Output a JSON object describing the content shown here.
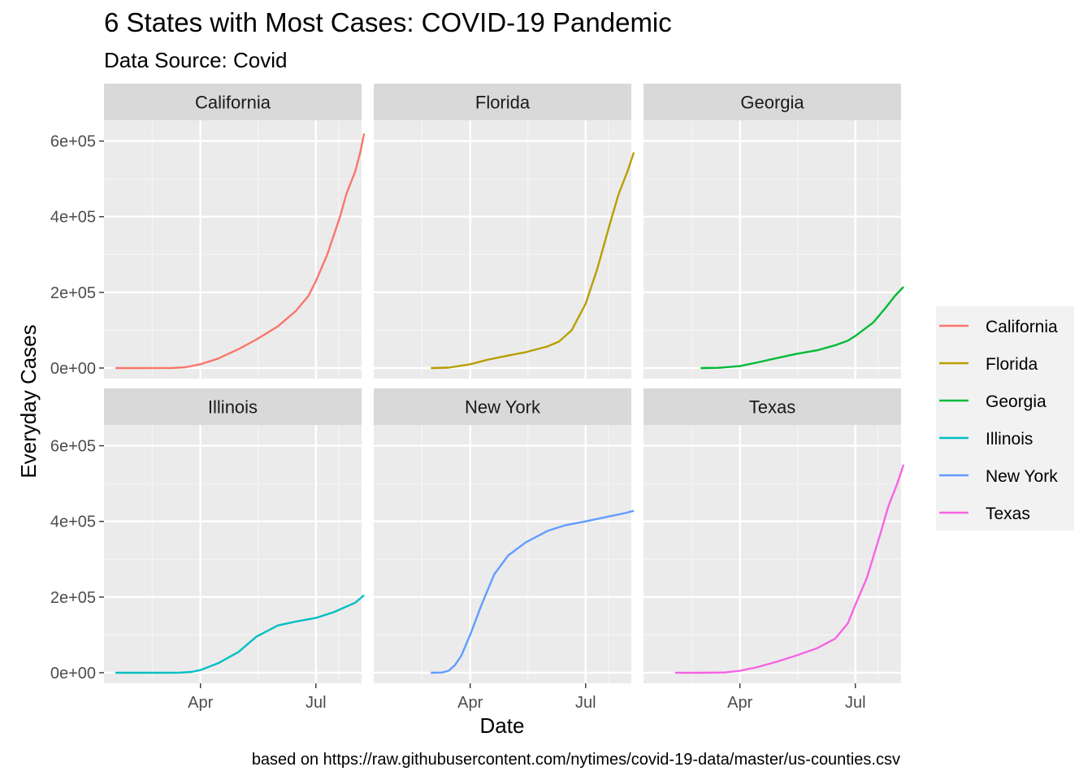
{
  "title": "6 States with Most Cases: COVID-19 Pandemic",
  "subtitle": "Data Source: Covid",
  "caption": "based on https://raw.githubusercontent.com/nytimes/covid-19-data/master/us-counties.csv",
  "chart_data": {
    "type": "line",
    "facet_layout": "2 rows x 3 columns, shared axes",
    "xlabel": "Date",
    "ylabel": "Everyday Cases",
    "x_ticks": [
      "Apr",
      "Jul"
    ],
    "x_tick_values": [
      "2020-04-01",
      "2020-07-01"
    ],
    "xlim": [
      "2020-01-16",
      "2020-08-06"
    ],
    "y_ticks": [
      "0e+00",
      "2e+05",
      "4e+05",
      "6e+05"
    ],
    "y_tick_values": [
      0,
      200000,
      400000,
      600000
    ],
    "ylim": [
      -28000,
      655000
    ],
    "grid": true,
    "legend_position": "right",
    "series": [
      {
        "name": "California",
        "color": "#F8766D",
        "points": [
          [
            "2020-01-25",
            0
          ],
          [
            "2020-02-15",
            0
          ],
          [
            "2020-03-10",
            200
          ],
          [
            "2020-03-20",
            2000
          ],
          [
            "2020-04-01",
            10000
          ],
          [
            "2020-04-15",
            25000
          ],
          [
            "2020-05-01",
            50000
          ],
          [
            "2020-05-15",
            75000
          ],
          [
            "2020-06-01",
            110000
          ],
          [
            "2020-06-15",
            150000
          ],
          [
            "2020-06-25",
            190000
          ],
          [
            "2020-07-01",
            230000
          ],
          [
            "2020-07-10",
            300000
          ],
          [
            "2020-07-20",
            400000
          ],
          [
            "2020-07-25",
            460000
          ],
          [
            "2020-08-01",
            520000
          ],
          [
            "2020-08-05",
            570000
          ],
          [
            "2020-08-08",
            620000
          ]
        ]
      },
      {
        "name": "Florida",
        "color": "#B79F00",
        "points": [
          [
            "2020-03-01",
            0
          ],
          [
            "2020-03-15",
            1000
          ],
          [
            "2020-04-01",
            10000
          ],
          [
            "2020-04-15",
            22000
          ],
          [
            "2020-05-01",
            33000
          ],
          [
            "2020-05-15",
            42000
          ],
          [
            "2020-06-01",
            57000
          ],
          [
            "2020-06-10",
            70000
          ],
          [
            "2020-06-20",
            100000
          ],
          [
            "2020-07-01",
            170000
          ],
          [
            "2020-07-10",
            260000
          ],
          [
            "2020-07-20",
            380000
          ],
          [
            "2020-07-27",
            460000
          ],
          [
            "2020-08-03",
            520000
          ],
          [
            "2020-08-08",
            570000
          ]
        ]
      },
      {
        "name": "Georgia",
        "color": "#00BA38",
        "points": [
          [
            "2020-03-01",
            0
          ],
          [
            "2020-03-15",
            500
          ],
          [
            "2020-04-01",
            5000
          ],
          [
            "2020-04-15",
            15000
          ],
          [
            "2020-05-01",
            27000
          ],
          [
            "2020-05-15",
            37000
          ],
          [
            "2020-06-01",
            47000
          ],
          [
            "2020-06-15",
            60000
          ],
          [
            "2020-06-25",
            72000
          ],
          [
            "2020-07-01",
            85000
          ],
          [
            "2020-07-15",
            120000
          ],
          [
            "2020-07-25",
            160000
          ],
          [
            "2020-08-01",
            190000
          ],
          [
            "2020-08-08",
            215000
          ]
        ]
      },
      {
        "name": "Illinois",
        "color": "#00BFC4",
        "points": [
          [
            "2020-01-25",
            0
          ],
          [
            "2020-02-15",
            0
          ],
          [
            "2020-03-15",
            200
          ],
          [
            "2020-03-25",
            2000
          ],
          [
            "2020-04-01",
            7000
          ],
          [
            "2020-04-15",
            25000
          ],
          [
            "2020-05-01",
            55000
          ],
          [
            "2020-05-15",
            95000
          ],
          [
            "2020-06-01",
            125000
          ],
          [
            "2020-06-15",
            135000
          ],
          [
            "2020-07-01",
            145000
          ],
          [
            "2020-07-15",
            160000
          ],
          [
            "2020-08-01",
            185000
          ],
          [
            "2020-08-08",
            205000
          ]
        ]
      },
      {
        "name": "New York",
        "color": "#619CFF",
        "points": [
          [
            "2020-03-01",
            0
          ],
          [
            "2020-03-10",
            500
          ],
          [
            "2020-03-15",
            5000
          ],
          [
            "2020-03-20",
            20000
          ],
          [
            "2020-03-25",
            45000
          ],
          [
            "2020-04-01",
            100000
          ],
          [
            "2020-04-10",
            180000
          ],
          [
            "2020-04-20",
            260000
          ],
          [
            "2020-05-01",
            310000
          ],
          [
            "2020-05-15",
            345000
          ],
          [
            "2020-06-01",
            375000
          ],
          [
            "2020-06-15",
            390000
          ],
          [
            "2020-07-01",
            400000
          ],
          [
            "2020-07-15",
            410000
          ],
          [
            "2020-08-01",
            422000
          ],
          [
            "2020-08-08",
            428000
          ]
        ]
      },
      {
        "name": "Texas",
        "color": "#F564E3",
        "points": [
          [
            "2020-02-10",
            0
          ],
          [
            "2020-03-01",
            0
          ],
          [
            "2020-03-20",
            500
          ],
          [
            "2020-04-01",
            5000
          ],
          [
            "2020-04-15",
            15000
          ],
          [
            "2020-05-01",
            30000
          ],
          [
            "2020-05-15",
            45000
          ],
          [
            "2020-06-01",
            65000
          ],
          [
            "2020-06-15",
            90000
          ],
          [
            "2020-06-25",
            130000
          ],
          [
            "2020-07-01",
            180000
          ],
          [
            "2020-07-10",
            250000
          ],
          [
            "2020-07-20",
            360000
          ],
          [
            "2020-07-27",
            440000
          ],
          [
            "2020-08-03",
            500000
          ],
          [
            "2020-08-08",
            550000
          ]
        ]
      }
    ]
  }
}
